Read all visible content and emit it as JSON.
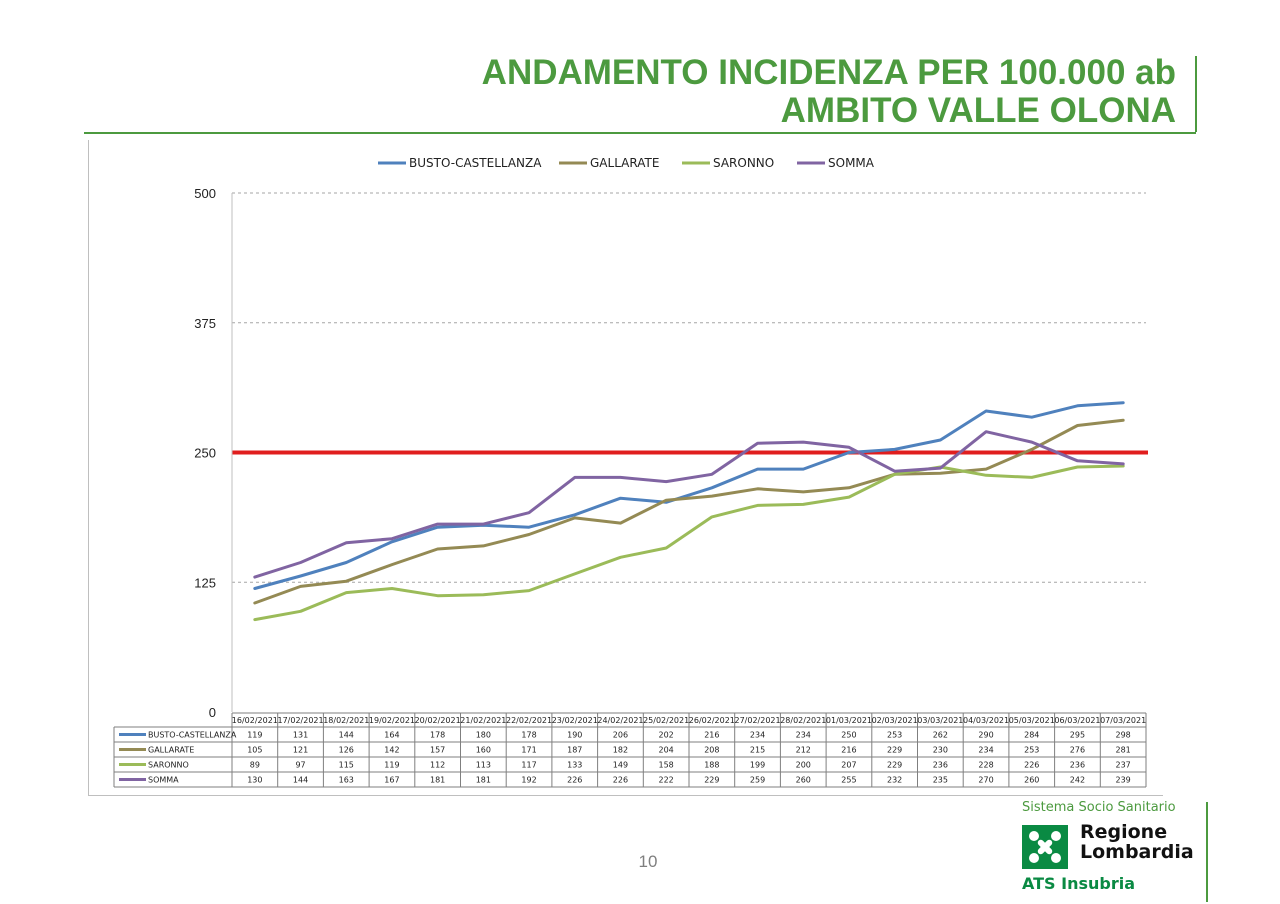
{
  "title_lines": [
    "ANDAMENTO INCIDENZA PER 100.000 ab",
    "AMBITO VALLE OLONA"
  ],
  "page_number": "10",
  "logo": {
    "system_text": "Sistema Socio Sanitario",
    "region_lines": [
      "Regione",
      "Lombardia"
    ],
    "ats_text": "ATS Insubria",
    "brand_color": "#0a8a43"
  },
  "colors": {
    "title": "#4c9a3f",
    "threshold": "#e01e1e"
  },
  "chart_data": {
    "type": "line",
    "title": "",
    "xlabel": "",
    "ylabel": "",
    "ylim": [
      0,
      500
    ],
    "yticks": [
      0,
      125,
      250,
      375,
      500
    ],
    "grid": true,
    "legend_position": "top",
    "threshold": 250,
    "categories": [
      "16/02/2021",
      "17/02/2021",
      "18/02/2021",
      "19/02/2021",
      "20/02/2021",
      "21/02/2021",
      "22/02/2021",
      "23/02/2021",
      "24/02/2021",
      "25/02/2021",
      "26/02/2021",
      "27/02/2021",
      "28/02/2021",
      "01/03/2021",
      "02/03/2021",
      "03/03/2021",
      "04/03/2021",
      "05/03/2021",
      "06/03/2021",
      "07/03/2021"
    ],
    "series": [
      {
        "name": "BUSTO-CASTELLANZA",
        "color": "#4f81bd",
        "values": [
          119,
          131,
          144,
          164,
          178,
          180,
          178,
          190,
          206,
          202,
          216,
          234,
          234,
          250,
          253,
          262,
          290,
          284,
          295,
          298
        ]
      },
      {
        "name": "GALLARATE",
        "color": "#948a54",
        "values": [
          105,
          121,
          126,
          142,
          157,
          160,
          171,
          187,
          182,
          204,
          208,
          215,
          212,
          216,
          229,
          230,
          234,
          253,
          276,
          281
        ]
      },
      {
        "name": "SARONNO",
        "color": "#9bbb59",
        "values": [
          89,
          97,
          115,
          119,
          112,
          113,
          117,
          133,
          149,
          158,
          188,
          199,
          200,
          207,
          229,
          236,
          228,
          226,
          236,
          237
        ]
      },
      {
        "name": "SOMMA",
        "color": "#8064a2",
        "values": [
          130,
          144,
          163,
          167,
          181,
          181,
          192,
          226,
          226,
          222,
          229,
          259,
          260,
          255,
          232,
          235,
          270,
          260,
          242,
          239
        ]
      }
    ]
  }
}
